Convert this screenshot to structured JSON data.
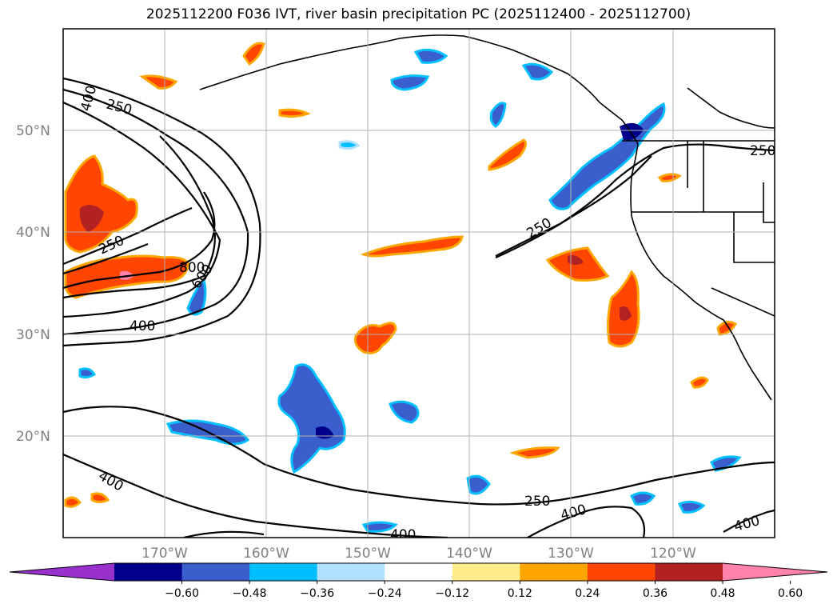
{
  "title": "2025112200 F036 IVT, river basin precipitation PC (2025112400 - 2025112700)",
  "map": {
    "lat_labels": [
      "50°N",
      "40°N",
      "30°N",
      "20°N"
    ],
    "lon_labels": [
      "170°W",
      "160°W",
      "150°W",
      "140°W",
      "130°W",
      "120°W"
    ],
    "grid": true
  },
  "ivt_contour_labels": [
    "400",
    "250",
    "250",
    "800",
    "600",
    "400",
    "250",
    "250",
    "400",
    "250",
    "400",
    "400",
    "400"
  ],
  "colorbar": {
    "orientation": "horizontal",
    "extend": "both",
    "tick_labels": [
      "−0.60",
      "−0.48",
      "−0.36",
      "−0.24",
      "−0.12",
      "0.12",
      "0.24",
      "0.36",
      "0.48",
      "0.60"
    ],
    "colors": [
      "#9932CC",
      "#00008B",
      "#3A5FCD",
      "#00BFFF",
      "#B0E2FF",
      "#FFFFFF",
      "#FFEC8B",
      "#FFA500",
      "#FF4500",
      "#B22222",
      "#FF82AB"
    ]
  }
}
